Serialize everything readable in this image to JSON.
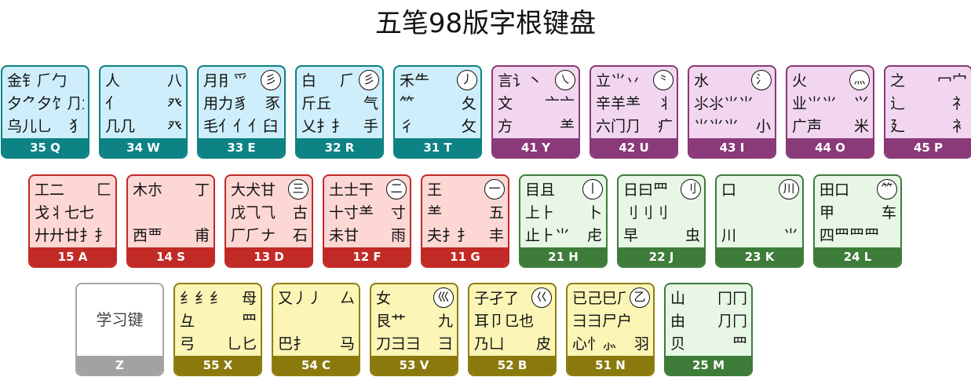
{
  "title": "五笔98版字根键盘",
  "rows": [
    [
      {
        "id": "q",
        "code": "35 Q",
        "theme": "cyan",
        "mark": "",
        "lines": [
          [
            "金钅⺁勹",
            ""
          ],
          [
            "夕⺈夕饣⺆鱼",
            ""
          ],
          [
            "乌儿乚",
            "犭"
          ]
        ]
      },
      {
        "id": "w",
        "code": "34 W",
        "theme": "cyan",
        "mark": "",
        "lines": [
          [
            "人",
            "八"
          ],
          [
            "亻",
            "癶"
          ],
          [
            "几几",
            "癶"
          ]
        ]
      },
      {
        "id": "e",
        "code": "33 E",
        "theme": "cyan",
        "mark": "彡",
        "lines": [
          [
            "月⺝⺤",
            ""
          ],
          [
            "用力豸",
            "豕"
          ],
          [
            "毛⺅⺅⺅臼",
            ""
          ]
        ]
      },
      {
        "id": "r",
        "code": "32 R",
        "theme": "cyan",
        "mark": "彡",
        "lines": [
          [
            "白",
            "⺁"
          ],
          [
            "斤丘",
            "气"
          ],
          [
            "乂扌⺘",
            "手"
          ]
        ]
      },
      {
        "id": "t",
        "code": "31 T",
        "theme": "cyan",
        "mark": "丿",
        "lines": [
          [
            "禾⺧",
            ""
          ],
          [
            "⺮",
            "夂"
          ],
          [
            "彳",
            "攵"
          ]
        ]
      },
      {
        "id": "y",
        "code": "41 Y",
        "theme": "violet",
        "mark": "㇏",
        "lines": [
          [
            "言讠丶",
            ""
          ],
          [
            "文",
            "亠亠"
          ],
          [
            "方",
            "⺷"
          ]
        ]
      },
      {
        "id": "u",
        "code": "42 U",
        "theme": "violet",
        "mark": "⺀",
        "lines": [
          [
            "立⺌丷",
            ""
          ],
          [
            "辛羊⺷",
            "丬"
          ],
          [
            "六门⺆",
            "疒"
          ]
        ]
      },
      {
        "id": "i",
        "code": "43 I",
        "theme": "violet",
        "mark": "氵",
        "lines": [
          [
            "水",
            ""
          ],
          [
            "⺢⺢⺌⺌",
            ""
          ],
          [
            "⺌⺌⺌",
            "小"
          ]
        ]
      },
      {
        "id": "o",
        "code": "44 O",
        "theme": "violet",
        "mark": "灬",
        "lines": [
          [
            "火",
            ""
          ],
          [
            "业⺌⺌",
            "⺍"
          ],
          [
            "广声",
            "米"
          ]
        ]
      },
      {
        "id": "p",
        "code": "45 P",
        "theme": "violet",
        "mark": "",
        "lines": [
          [
            "之",
            "冖宀"
          ],
          [
            "辶",
            "礻"
          ],
          [
            "廴",
            "衤"
          ]
        ]
      }
    ],
    [
      {
        "id": "a",
        "code": "15 A",
        "theme": "red",
        "mark": "",
        "lines": [
          [
            "工⼆",
            "匚"
          ],
          [
            "戈⺦七七",
            ""
          ],
          [
            "廾廾廿⺘⺘",
            ""
          ]
        ]
      },
      {
        "id": "s",
        "code": "14 S",
        "theme": "red",
        "mark": "",
        "lines": [
          [
            "木朩",
            "丁"
          ],
          [
            "",
            ""
          ],
          [
            "西覀",
            "甫"
          ]
        ]
      },
      {
        "id": "d",
        "code": "13 D",
        "theme": "red",
        "mark": "三",
        "lines": [
          [
            "大犬甘",
            ""
          ],
          [
            "戊⺄⺄",
            "古"
          ],
          [
            "厂⺁ナ",
            "石"
          ]
        ]
      },
      {
        "id": "f",
        "code": "12 F",
        "theme": "red",
        "mark": "二",
        "lines": [
          [
            "土士干",
            ""
          ],
          [
            "十寸⺷",
            "寸"
          ],
          [
            "未甘",
            "雨"
          ]
        ]
      },
      {
        "id": "g",
        "code": "11 G",
        "theme": "red",
        "mark": "一",
        "lines": [
          [
            "王",
            ""
          ],
          [
            "⺷",
            "五"
          ],
          [
            "夫⺘⺘",
            "丰"
          ]
        ]
      },
      {
        "id": "h",
        "code": "21 H",
        "theme": "green",
        "mark": "丨",
        "lines": [
          [
            "目且",
            ""
          ],
          [
            "上⺊",
            "卜"
          ],
          [
            "止⺊⺌",
            "虍"
          ]
        ]
      },
      {
        "id": "j",
        "code": "22 J",
        "theme": "green",
        "mark": "刂",
        "lines": [
          [
            "日曰⺫",
            ""
          ],
          [
            "刂刂刂",
            ""
          ],
          [
            "早",
            "虫"
          ]
        ]
      },
      {
        "id": "k",
        "code": "23 K",
        "theme": "green",
        "mark": "川",
        "lines": [
          [
            "口",
            ""
          ],
          [
            "",
            ""
          ],
          [
            "川",
            "⺌"
          ]
        ]
      },
      {
        "id": "l",
        "code": "24 L",
        "theme": "green",
        "mark": "⺮",
        "lines": [
          [
            "田口",
            ""
          ],
          [
            "甲",
            "车"
          ],
          [
            "四⺫⺫⺫",
            ""
          ]
        ]
      }
    ],
    [
      {
        "id": "z",
        "code": "Z",
        "theme": "gray",
        "blank": "学习键"
      },
      {
        "id": "x",
        "code": "55 X",
        "theme": "olive",
        "mark": "",
        "lines": [
          [
            "纟纟纟",
            "母"
          ],
          [
            "彑",
            "⺫"
          ],
          [
            "弓",
            "⺃匕"
          ]
        ]
      },
      {
        "id": "c",
        "code": "54 C",
        "theme": "olive",
        "mark": "",
        "lines": [
          [
            "又⼃⼃",
            "厶"
          ],
          [
            "",
            ""
          ],
          [
            "巴⺘",
            "马"
          ]
        ]
      },
      {
        "id": "v",
        "code": "53 V",
        "theme": "olive",
        "mark": "巛",
        "lines": [
          [
            "女",
            ""
          ],
          [
            "艮⺾",
            "九"
          ],
          [
            "刀⺕⺕",
            "彐"
          ]
        ]
      },
      {
        "id": "b",
        "code": "52 B",
        "theme": "olive",
        "mark": "巜",
        "lines": [
          [
            "子孑了",
            ""
          ],
          [
            "耳卩⺋也",
            ""
          ],
          [
            "乃凵",
            "皮"
          ]
        ]
      },
      {
        "id": "n",
        "code": "51 N",
        "theme": "olive",
        "mark": "乙",
        "lines": [
          [
            "已己巳⺁",
            ""
          ],
          [
            "⺕⺕尸户",
            ""
          ],
          [
            "心⺖⺗",
            "羽"
          ]
        ]
      },
      {
        "id": "m",
        "code": "25 M",
        "theme": "green",
        "mark": "",
        "lines": [
          [
            "山",
            "冂冂"
          ],
          [
            "由",
            "⺆冂"
          ],
          [
            "贝",
            "⺫"
          ]
        ]
      }
    ]
  ],
  "themes": {
    "cyan": {
      "bg": "#cdeefa",
      "bar": "#0d8385",
      "border": "#0d7f83"
    },
    "violet": {
      "bg": "#f2d6ef",
      "bar": "#8a3a78",
      "border": "#863a76"
    },
    "red": {
      "bg": "#fdd7d4",
      "bar": "#c22a26",
      "border": "#c12b28"
    },
    "green": {
      "bg": "#e7f6e5",
      "bar": "#3e7c3a",
      "border": "#3e7c3a"
    },
    "olive": {
      "bg": "#fbf5b6",
      "bar": "#8a7a0e",
      "border": "#8f7e10"
    },
    "gray": {
      "bg": "#ffffff",
      "bar": "#a2a2a2",
      "border": "#a6a6a6"
    }
  }
}
